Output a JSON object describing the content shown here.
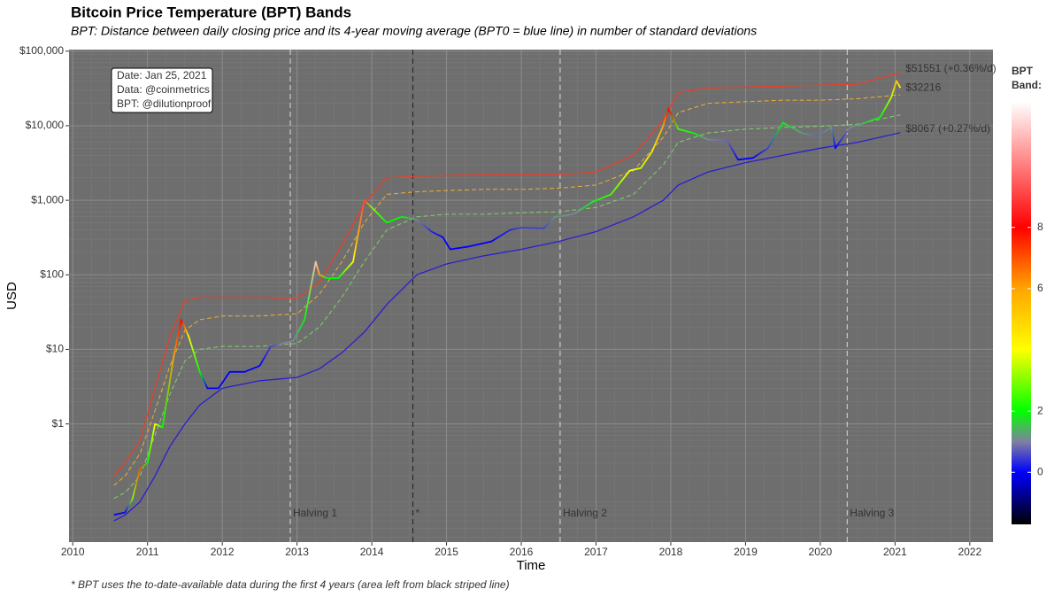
{
  "chart_data": {
    "type": "line",
    "title": "Bitcoin Price Temperature (BPT) Bands",
    "subtitle": "BPT: Distance between daily closing price and its 4-year moving average (BPT0 = blue line) in number of standard deviations",
    "xlabel": "Time",
    "ylabel": "USD",
    "footnote": "* BPT uses the to-date-available data during the first 4 years (area left from black striped line)",
    "info": [
      "Date: Jan 25, 2021",
      "Data: @coinmetrics",
      "BPT: @dilutionproof"
    ],
    "log_y": true,
    "grid": true,
    "xlim": [
      2009.95,
      2022.31
    ],
    "xticks": [
      2010,
      2011,
      2012,
      2013,
      2014,
      2015,
      2016,
      2017,
      2018,
      2019,
      2020,
      2021,
      2022
    ],
    "ylim": [
      0.026,
      105000
    ],
    "yticks": [
      {
        "value": 1,
        "label": "$1"
      },
      {
        "value": 10,
        "label": "$10"
      },
      {
        "value": 100,
        "label": "$100"
      },
      {
        "value": 1000,
        "label": "$1,000"
      },
      {
        "value": 10000,
        "label": "$10,000"
      },
      {
        "value": 100000,
        "label": "$100,000"
      }
    ],
    "vlines": [
      {
        "x": 2012.91,
        "label": "Halving 1",
        "color": "#d9d9d9"
      },
      {
        "x": 2014.55,
        "label": "*",
        "color": "#222222"
      },
      {
        "x": 2016.52,
        "label": "Halving 2",
        "color": "#d9d9d9"
      },
      {
        "x": 2020.36,
        "label": "Halving 3",
        "color": "#d9d9d9"
      }
    ],
    "band_x": [
      2010.55,
      2010.7,
      2010.9,
      2011.1,
      2011.3,
      2011.5,
      2011.7,
      2012.0,
      2012.5,
      2013.0,
      2013.3,
      2013.6,
      2013.9,
      2014.2,
      2014.6,
      2015.0,
      2015.5,
      2016.0,
      2016.5,
      2017.0,
      2017.5,
      2017.9,
      2018.1,
      2018.5,
      2019.0,
      2019.5,
      2020.0,
      2020.5,
      2021.07
    ],
    "series": [
      {
        "color": "#e8402a",
        "dash": false,
        "end_label": "$51551 (+0.36%/d)",
        "values": [
          0.2,
          0.3,
          0.6,
          3,
          15,
          45,
          50,
          50,
          50,
          48,
          80,
          250,
          900,
          2000,
          2100,
          2150,
          2200,
          2200,
          2200,
          2400,
          4000,
          12000,
          28000,
          32000,
          33000,
          34000,
          35000,
          36000,
          51551
        ]
      },
      {
        "color": "#f0b030",
        "dash": true,
        "values": [
          0.15,
          0.2,
          0.4,
          1.5,
          6,
          18,
          25,
          28,
          28,
          30,
          55,
          150,
          500,
          1200,
          1300,
          1350,
          1400,
          1400,
          1450,
          1600,
          2500,
          7000,
          15000,
          20000,
          21000,
          22000,
          22000,
          23000,
          26000
        ]
      },
      {
        "color": "#7fd36a",
        "dash": true,
        "values": [
          0.1,
          0.12,
          0.2,
          0.7,
          2.5,
          7,
          10,
          11,
          11,
          12,
          20,
          50,
          150,
          400,
          600,
          650,
          650,
          680,
          700,
          800,
          1200,
          3000,
          6000,
          8000,
          9000,
          9500,
          9800,
          10500,
          14000
        ]
      },
      {
        "color": "#2a1fd0",
        "dash": false,
        "end_label": "$8067 (+0.27%/d)",
        "values": [
          0.05,
          0.06,
          0.09,
          0.2,
          0.5,
          1.0,
          1.8,
          3.0,
          3.8,
          4.2,
          5.5,
          9,
          17,
          40,
          100,
          140,
          180,
          220,
          280,
          380,
          600,
          1000,
          1600,
          2400,
          3200,
          4000,
          5000,
          6000,
          8067
        ]
      }
    ],
    "price": {
      "end_label": "$32216",
      "end_color": "#ffff33",
      "x": [
        2010.55,
        2010.7,
        2010.8,
        2010.9,
        2011.0,
        2011.1,
        2011.2,
        2011.35,
        2011.45,
        2011.55,
        2011.7,
        2011.8,
        2011.95,
        2012.1,
        2012.3,
        2012.5,
        2012.65,
        2012.8,
        2012.95,
        2013.1,
        2013.25,
        2013.3,
        2013.4,
        2013.55,
        2013.75,
        2013.9,
        2014.0,
        2014.2,
        2014.4,
        2014.6,
        2014.8,
        2014.95,
        2015.05,
        2015.3,
        2015.6,
        2015.85,
        2016.0,
        2016.3,
        2016.45,
        2016.7,
        2016.95,
        2017.2,
        2017.45,
        2017.6,
        2017.75,
        2017.9,
        2017.97,
        2018.1,
        2018.3,
        2018.5,
        2018.75,
        2018.9,
        2019.1,
        2019.3,
        2019.5,
        2019.75,
        2019.95,
        2020.15,
        2020.2,
        2020.4,
        2020.6,
        2020.8,
        2020.95,
        2021.02,
        2021.07
      ],
      "values": [
        0.06,
        0.065,
        0.1,
        0.25,
        0.3,
        1.0,
        0.9,
        8,
        25,
        15,
        5,
        3,
        3,
        5,
        5,
        6,
        11,
        12,
        13,
        25,
        150,
        100,
        90,
        90,
        150,
        1000,
        800,
        500,
        600,
        550,
        380,
        320,
        220,
        240,
        280,
        400,
        430,
        420,
        600,
        650,
        950,
        1200,
        2500,
        2700,
        4500,
        10000,
        17000,
        9000,
        8000,
        6500,
        6400,
        3500,
        3700,
        5000,
        11000,
        8000,
        7200,
        9500,
        5000,
        9500,
        11000,
        13000,
        24000,
        40000,
        32216
      ],
      "band": [
        0,
        0,
        3,
        7,
        2,
        4,
        2,
        6,
        8,
        4,
        2,
        0,
        0,
        0,
        0,
        0,
        0.5,
        1,
        1,
        2,
        11,
        6,
        2,
        2,
        4,
        9,
        3,
        2,
        2,
        1,
        0.3,
        0,
        0,
        0,
        0,
        0.3,
        0.5,
        0.5,
        1.2,
        1,
        2,
        2.5,
        4,
        3.5,
        4.5,
        6,
        8,
        2.5,
        2,
        1,
        0.8,
        0,
        0,
        0.5,
        2,
        1.2,
        0.8,
        1.2,
        0,
        1,
        1.5,
        2,
        3.5,
        5.5,
        4
      ]
    },
    "colorbar": {
      "title": [
        "BPT",
        "Band:"
      ],
      "lim": [
        -1.7,
        12.1
      ],
      "ticks": [
        0,
        2,
        6,
        8
      ],
      "stops": [
        {
          "value": -1.7,
          "color": "#000000"
        },
        {
          "value": 0,
          "color": "#0000ff"
        },
        {
          "value": 1,
          "color": "#8080a0"
        },
        {
          "value": 2,
          "color": "#00ff00"
        },
        {
          "value": 4,
          "color": "#ffff00"
        },
        {
          "value": 6,
          "color": "#ffa500"
        },
        {
          "value": 8,
          "color": "#ff0000"
        },
        {
          "value": 12.1,
          "color": "#ffffff"
        }
      ]
    }
  }
}
